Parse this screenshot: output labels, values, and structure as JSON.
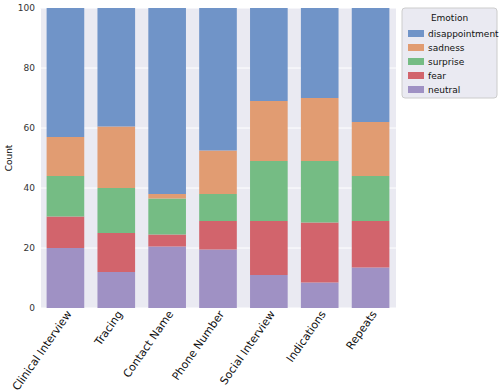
{
  "chart_data": {
    "type": "bar",
    "stacked": true,
    "y_label": "Count",
    "legend_title": "Emotion",
    "legend": "upper right",
    "grid": true,
    "categories": [
      "Clinical Interview",
      "Tracing",
      "Contact Name",
      "Phone Number",
      "Social Interview",
      "Indications",
      "Repeats"
    ],
    "ylim": [
      0,
      100
    ],
    "yticks": [
      0,
      20,
      40,
      60,
      80,
      100
    ],
    "series": [
      {
        "name": "disappointment",
        "color": "#7094c8",
        "values": [
          43,
          39.5,
          62,
          47.5,
          31,
          30,
          38
        ]
      },
      {
        "name": "sadness",
        "color": "#e19c72",
        "values": [
          13,
          20.5,
          1.5,
          14.5,
          20,
          21,
          18
        ]
      },
      {
        "name": "surprise",
        "color": "#75bc84",
        "values": [
          13.5,
          15,
          12,
          9,
          20,
          20.5,
          15
        ]
      },
      {
        "name": "fear",
        "color": "#d2646c",
        "values": [
          10.5,
          13,
          4,
          9.5,
          18,
          20,
          15.5
        ]
      },
      {
        "name": "neutral",
        "color": "#9f91c4",
        "values": [
          20,
          12,
          20.5,
          19.5,
          11,
          8.5,
          13.5
        ]
      }
    ]
  }
}
